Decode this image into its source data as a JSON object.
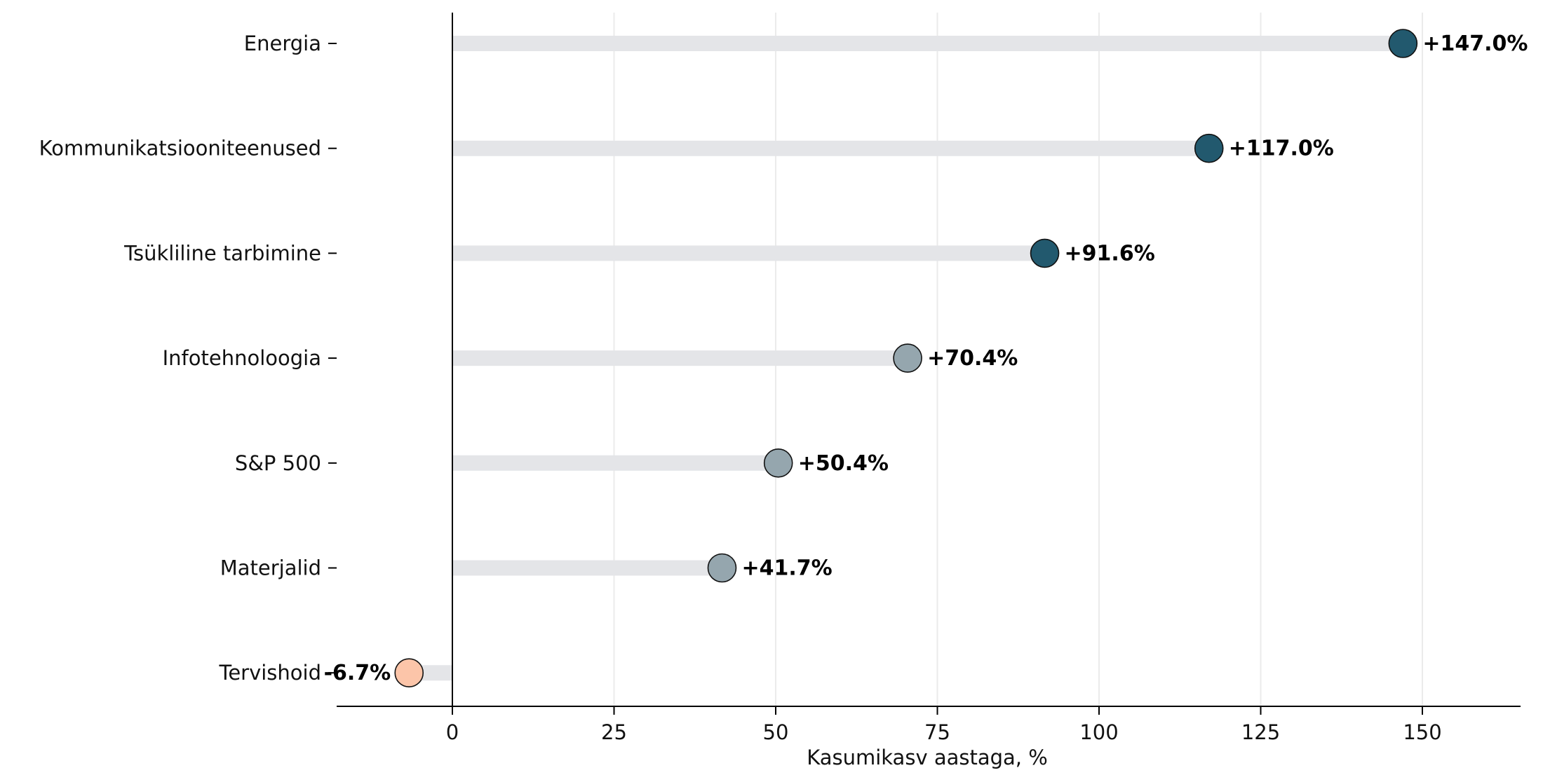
{
  "chart_data": {
    "type": "lollipop",
    "title": "",
    "xlabel": "Kasumikasv aastaga, %",
    "ylabel": "",
    "xlim": [
      -18,
      165
    ],
    "x_ticks": [
      0,
      25,
      50,
      75,
      100,
      125,
      150
    ],
    "grid": "vertical",
    "categories": [
      "Energia",
      "Kommunikatsiooniteenused",
      "Tsükliline tarbimine",
      "Infotehnoloogia",
      "S&P 500",
      "Materjalid",
      "Tervishoid"
    ],
    "values": [
      147.0,
      117.0,
      91.6,
      70.4,
      50.4,
      41.7,
      -6.7
    ],
    "value_labels": [
      "+147.0%",
      "+117.0%",
      "+91.6%",
      "+70.4%",
      "+50.4%",
      "+41.7%",
      "-6.7%"
    ],
    "colors": {
      "high": "#22596e",
      "mid": "#95a6ae",
      "negative": "#fcc5a9",
      "track": "#e4e5e8",
      "grid": "#ebebeb",
      "axis": "#000000"
    },
    "point_color_groups": [
      "high",
      "high",
      "high",
      "mid",
      "mid",
      "mid",
      "negative"
    ]
  }
}
